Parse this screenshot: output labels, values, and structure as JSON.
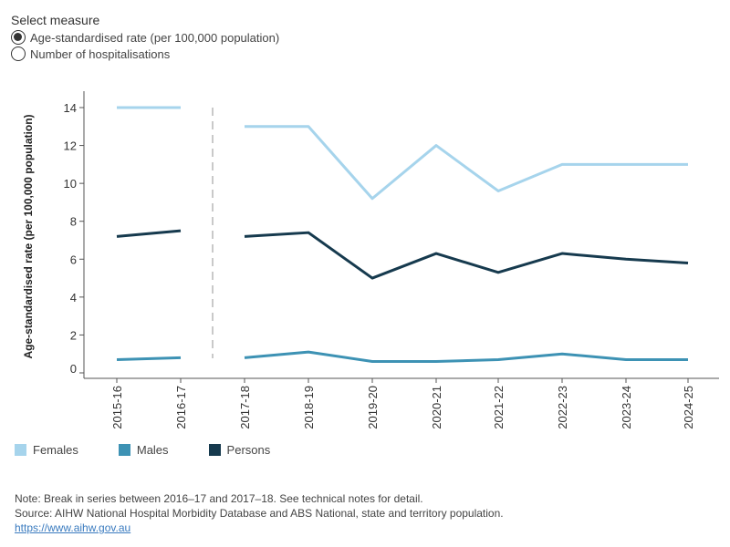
{
  "controls": {
    "title": "Select measure",
    "options": [
      {
        "label": "Age-standardised rate (per 100,000 population)",
        "selected": true
      },
      {
        "label": "Number of hospitalisations",
        "selected": false
      }
    ]
  },
  "chart_data": {
    "type": "line",
    "categories": [
      "2015-16",
      "2016-17",
      "2017-18",
      "2018-19",
      "2019-20",
      "2020-21",
      "2021-22",
      "2022-23",
      "2023-24",
      "2024-25"
    ],
    "ylabel": "Age-standardised rate (per 100,000 population)",
    "xlabel": "",
    "ylim": [
      0,
      15
    ],
    "yticks": [
      0,
      2,
      4,
      6,
      8,
      10,
      12,
      14
    ],
    "series_break_after": "2016-17",
    "series": [
      {
        "name": "Females",
        "color": "#a6d4ec",
        "values": [
          14.0,
          14.0,
          13.0,
          13.0,
          9.2,
          12.0,
          9.6,
          11.0,
          11.0,
          11.0
        ]
      },
      {
        "name": "Males",
        "color": "#3d92b4",
        "values": [
          0.7,
          0.8,
          0.8,
          1.1,
          0.6,
          0.6,
          0.7,
          1.0,
          0.7,
          0.7
        ]
      },
      {
        "name": "Persons",
        "color": "#163a4e",
        "values": [
          7.2,
          7.5,
          7.2,
          7.4,
          5.0,
          6.3,
          5.3,
          6.3,
          6.0,
          5.8
        ]
      }
    ]
  },
  "notes": {
    "line1": "Note: Break in series between 2016–17 and 2017–18. See technical notes for detail.",
    "line2": "Source: AIHW National Hospital Morbidity Database and ABS National, state and territory population.",
    "link": "https://www.aihw.gov.au"
  }
}
